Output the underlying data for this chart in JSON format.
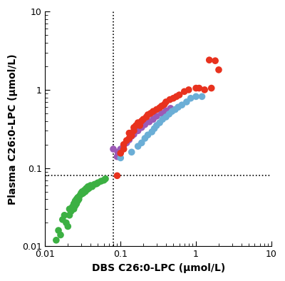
{
  "title": "",
  "xlabel": "DBS C26:0-LPC (μmol/L)",
  "ylabel": "Plasma C26:0-LPC (μmol/L)",
  "xlim": [
    0.01,
    10
  ],
  "ylim": [
    0.01,
    10
  ],
  "hline": 0.08,
  "vline": 0.08,
  "green_points": [
    [
      0.014,
      0.012
    ],
    [
      0.015,
      0.016
    ],
    [
      0.016,
      0.014
    ],
    [
      0.017,
      0.022
    ],
    [
      0.018,
      0.025
    ],
    [
      0.019,
      0.02
    ],
    [
      0.02,
      0.018
    ],
    [
      0.021,
      0.025
    ],
    [
      0.021,
      0.03
    ],
    [
      0.022,
      0.028
    ],
    [
      0.023,
      0.03
    ],
    [
      0.023,
      0.032
    ],
    [
      0.024,
      0.035
    ],
    [
      0.024,
      0.03
    ],
    [
      0.025,
      0.038
    ],
    [
      0.025,
      0.033
    ],
    [
      0.026,
      0.035
    ],
    [
      0.026,
      0.04
    ],
    [
      0.027,
      0.038
    ],
    [
      0.027,
      0.042
    ],
    [
      0.028,
      0.04
    ],
    [
      0.028,
      0.043
    ],
    [
      0.029,
      0.045
    ],
    [
      0.03,
      0.048
    ],
    [
      0.031,
      0.047
    ],
    [
      0.031,
      0.05
    ],
    [
      0.032,
      0.048
    ],
    [
      0.033,
      0.052
    ],
    [
      0.034,
      0.05
    ],
    [
      0.035,
      0.055
    ],
    [
      0.036,
      0.053
    ],
    [
      0.037,
      0.058
    ],
    [
      0.038,
      0.055
    ],
    [
      0.04,
      0.06
    ],
    [
      0.042,
      0.058
    ],
    [
      0.045,
      0.062
    ],
    [
      0.048,
      0.063
    ],
    [
      0.05,
      0.065
    ],
    [
      0.055,
      0.068
    ],
    [
      0.06,
      0.07
    ],
    [
      0.063,
      0.073
    ]
  ],
  "red_points": [
    [
      0.09,
      0.08
    ],
    [
      0.1,
      0.155
    ],
    [
      0.11,
      0.175
    ],
    [
      0.11,
      0.2
    ],
    [
      0.12,
      0.225
    ],
    [
      0.13,
      0.24
    ],
    [
      0.13,
      0.28
    ],
    [
      0.14,
      0.26
    ],
    [
      0.15,
      0.3
    ],
    [
      0.15,
      0.33
    ],
    [
      0.16,
      0.35
    ],
    [
      0.17,
      0.38
    ],
    [
      0.18,
      0.35
    ],
    [
      0.19,
      0.4
    ],
    [
      0.2,
      0.42
    ],
    [
      0.22,
      0.45
    ],
    [
      0.23,
      0.48
    ],
    [
      0.25,
      0.5
    ],
    [
      0.27,
      0.53
    ],
    [
      0.3,
      0.56
    ],
    [
      0.33,
      0.59
    ],
    [
      0.35,
      0.62
    ],
    [
      0.38,
      0.65
    ],
    [
      0.4,
      0.7
    ],
    [
      0.45,
      0.75
    ],
    [
      0.5,
      0.78
    ],
    [
      0.55,
      0.82
    ],
    [
      0.6,
      0.86
    ],
    [
      0.7,
      0.95
    ],
    [
      0.8,
      1.0
    ],
    [
      1.0,
      1.05
    ],
    [
      1.1,
      1.05
    ],
    [
      1.3,
      1.0
    ],
    [
      1.6,
      1.05
    ],
    [
      1.5,
      2.4
    ],
    [
      1.8,
      2.35
    ],
    [
      2.0,
      1.8
    ]
  ],
  "blue_points": [
    [
      0.1,
      0.135
    ],
    [
      0.14,
      0.16
    ],
    [
      0.17,
      0.19
    ],
    [
      0.19,
      0.21
    ],
    [
      0.21,
      0.24
    ],
    [
      0.23,
      0.265
    ],
    [
      0.26,
      0.29
    ],
    [
      0.28,
      0.32
    ],
    [
      0.3,
      0.35
    ],
    [
      0.33,
      0.38
    ],
    [
      0.36,
      0.42
    ],
    [
      0.4,
      0.45
    ],
    [
      0.44,
      0.49
    ],
    [
      0.48,
      0.53
    ],
    [
      0.53,
      0.56
    ],
    [
      0.58,
      0.6
    ],
    [
      0.65,
      0.64
    ],
    [
      0.75,
      0.7
    ],
    [
      0.85,
      0.78
    ],
    [
      1.0,
      0.82
    ],
    [
      1.2,
      0.82
    ]
  ],
  "purple_points": [
    [
      0.08,
      0.175
    ],
    [
      0.09,
      0.14
    ],
    [
      0.092,
      0.16
    ],
    [
      0.095,
      0.155
    ],
    [
      0.1,
      0.175
    ],
    [
      0.11,
      0.195
    ],
    [
      0.12,
      0.21
    ],
    [
      0.13,
      0.23
    ],
    [
      0.14,
      0.255
    ],
    [
      0.15,
      0.27
    ],
    [
      0.17,
      0.3
    ],
    [
      0.19,
      0.33
    ],
    [
      0.21,
      0.36
    ],
    [
      0.24,
      0.39
    ],
    [
      0.27,
      0.42
    ],
    [
      0.3,
      0.46
    ],
    [
      0.35,
      0.5
    ],
    [
      0.4,
      0.54
    ],
    [
      0.46,
      0.58
    ]
  ],
  "green_color": "#3cb043",
  "red_color": "#e8321e",
  "blue_color": "#6baed6",
  "purple_color": "#9b59b6",
  "marker_size": 48,
  "xlabel_fontsize": 10,
  "ylabel_fontsize": 10,
  "tick_fontsize": 9
}
